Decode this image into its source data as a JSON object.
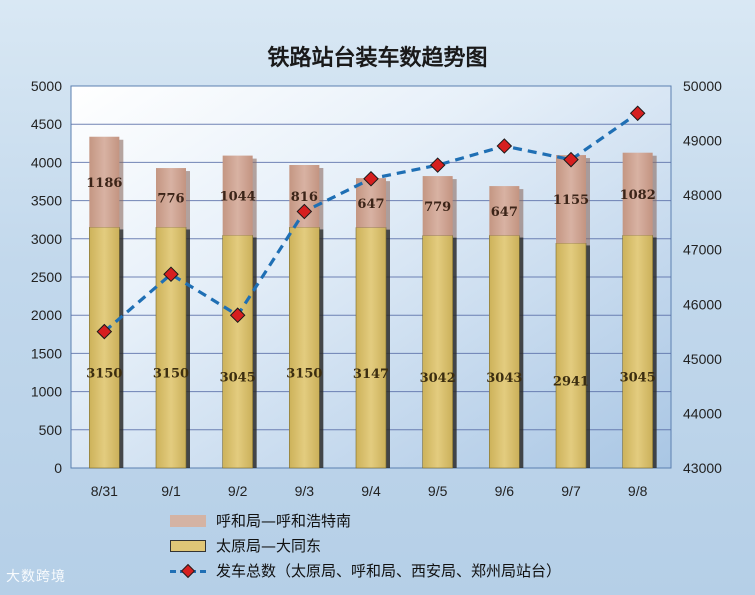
{
  "chart_data": {
    "type": "bar",
    "title": "铁路站台装车数趋势图",
    "categories": [
      "8/31",
      "9/1",
      "9/2",
      "9/3",
      "9/4",
      "9/5",
      "9/6",
      "9/7",
      "9/8"
    ],
    "stacked": true,
    "series": [
      {
        "name": "太原局—大同东",
        "type": "bar",
        "axis": "left",
        "values": [
          3150,
          3150,
          3045,
          3150,
          3147,
          3042,
          3043,
          2941,
          3045
        ],
        "labels": [
          "3150",
          "3150",
          "3045",
          "3150",
          "3147",
          "3042",
          "3043",
          "2941",
          "3045"
        ],
        "color": "#d9c06b"
      },
      {
        "name": "呼和局—呼和浩特南",
        "type": "bar",
        "axis": "left",
        "values": [
          1186,
          776,
          1044,
          816,
          647,
          779,
          647,
          1155,
          1082
        ],
        "labels": [
          "1186",
          "776",
          "1044",
          "816",
          "647",
          "779",
          "647",
          "1155",
          "1082"
        ],
        "color": "#c9a08e"
      },
      {
        "name": "发车总数（太原局、呼和局、西安局、郑州局站台）",
        "type": "line",
        "axis": "right",
        "values": [
          45500,
          46550,
          45800,
          47700,
          48300,
          48550,
          48900,
          48650,
          49500
        ],
        "color": "#1f6fb4",
        "marker_color": "#d61f1f"
      }
    ],
    "left_axis": {
      "min": 0,
      "max": 5000,
      "ticks": [
        "0",
        "500",
        "1000",
        "1500",
        "2000",
        "2500",
        "3000",
        "3500",
        "4000",
        "4500",
        "5000"
      ]
    },
    "right_axis": {
      "min": 43000,
      "max": 50000,
      "ticks": [
        "43000",
        "44000",
        "45000",
        "46000",
        "47000",
        "48000",
        "49000",
        "50000"
      ]
    },
    "grid": true,
    "legend_position": "bottom"
  },
  "watermark": "大数跨境"
}
